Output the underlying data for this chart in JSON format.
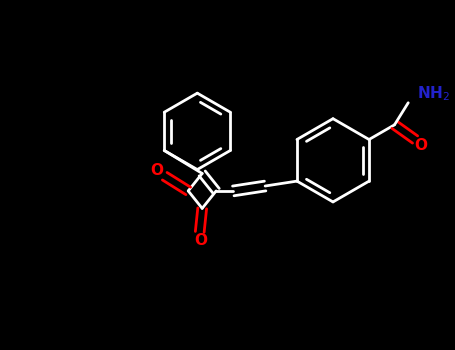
{
  "bg_color": "#000000",
  "bond_color": "#ffffff",
  "o_color": "#ff0000",
  "n_color": "#2222cc",
  "lw": 2.0,
  "figsize": [
    4.55,
    3.5
  ],
  "dpi": 100,
  "xlim": [
    0,
    9.1
  ],
  "ylim": [
    0,
    7.0
  ]
}
